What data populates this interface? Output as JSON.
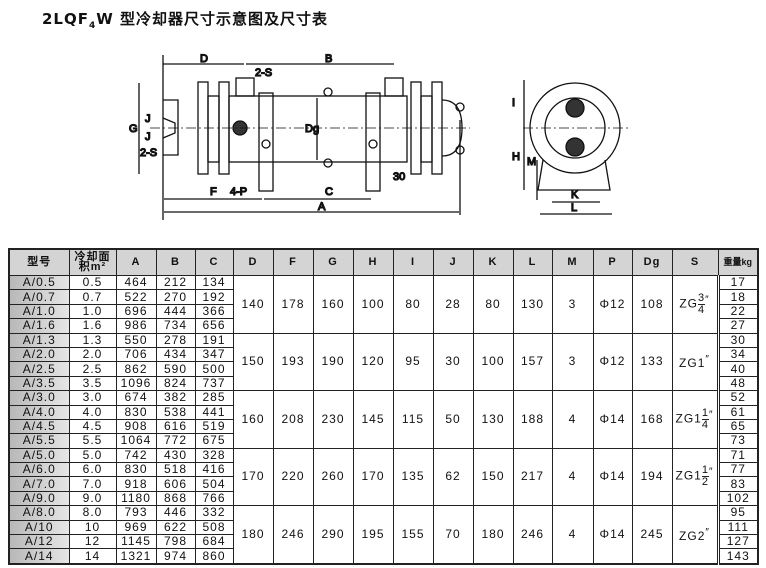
{
  "title": {
    "prefix": "2LQF",
    "sub": "4",
    "suffix": "W 型冷却器尺寸示意图及尺寸表"
  },
  "drawing": {
    "side_labels": {
      "D": "D",
      "B": "B",
      "S2_top": "2-S",
      "S2_left": "2-S",
      "G": "G",
      "J1": "J",
      "J2": "J",
      "Dg": "Dg",
      "F": "F",
      "P4": "4-P",
      "C": "C",
      "d30": "30",
      "A": "A"
    },
    "end_labels": {
      "I": "I",
      "H": "H",
      "M": "M",
      "K": "K",
      "L": "L"
    }
  },
  "table": {
    "headers": [
      "型号",
      "冷却面积m²",
      "A",
      "B",
      "C",
      "D",
      "F",
      "G",
      "H",
      "I",
      "J",
      "K",
      "L",
      "M",
      "P",
      "Dg",
      "S",
      "重量kg"
    ],
    "header_area": {
      "line1": "冷却面",
      "line2": "积m²"
    },
    "rows": [
      {
        "model": "A/0.5",
        "area": "0.5",
        "A": "464",
        "B": "212",
        "C": "134",
        "kg": "17"
      },
      {
        "model": "A/0.7",
        "area": "0.7",
        "A": "522",
        "B": "270",
        "C": "192",
        "kg": "18"
      },
      {
        "model": "A/1.0",
        "area": "1.0",
        "A": "696",
        "B": "444",
        "C": "366",
        "kg": "22"
      },
      {
        "model": "A/1.6",
        "area": "1.6",
        "A": "986",
        "B": "734",
        "C": "656",
        "kg": "27"
      },
      {
        "model": "A/1.3",
        "area": "1.3",
        "A": "550",
        "B": "278",
        "C": "191",
        "kg": "30"
      },
      {
        "model": "A/2.0",
        "area": "2.0",
        "A": "706",
        "B": "434",
        "C": "347",
        "kg": "34"
      },
      {
        "model": "A/2.5",
        "area": "2.5",
        "A": "862",
        "B": "590",
        "C": "500",
        "kg": "40"
      },
      {
        "model": "A/3.5",
        "area": "3.5",
        "A": "1096",
        "B": "824",
        "C": "737",
        "kg": "48"
      },
      {
        "model": "A/3.0",
        "area": "3.0",
        "A": "674",
        "B": "382",
        "C": "285",
        "kg": "52"
      },
      {
        "model": "A/4.0",
        "area": "4.0",
        "A": "830",
        "B": "538",
        "C": "441",
        "kg": "61"
      },
      {
        "model": "A/4.5",
        "area": "4.5",
        "A": "908",
        "B": "616",
        "C": "519",
        "kg": "65"
      },
      {
        "model": "A/5.5",
        "area": "5.5",
        "A": "1064",
        "B": "772",
        "C": "675",
        "kg": "73"
      },
      {
        "model": "A/5.0",
        "area": "5.0",
        "A": "742",
        "B": "430",
        "C": "328",
        "kg": "71"
      },
      {
        "model": "A/6.0",
        "area": "6.0",
        "A": "830",
        "B": "518",
        "C": "416",
        "kg": "77"
      },
      {
        "model": "A/7.0",
        "area": "7.0",
        "A": "918",
        "B": "606",
        "C": "504",
        "kg": "83"
      },
      {
        "model": "A/9.0",
        "area": "9.0",
        "A": "1180",
        "B": "868",
        "C": "766",
        "kg": "102"
      },
      {
        "model": "A/8.0",
        "area": "8.0",
        "A": "793",
        "B": "446",
        "C": "332",
        "kg": "95"
      },
      {
        "model": "A/10",
        "area": "10",
        "A": "969",
        "B": "622",
        "C": "508",
        "kg": "111"
      },
      {
        "model": "A/12",
        "area": "12",
        "A": "1145",
        "B": "798",
        "C": "684",
        "kg": "127"
      },
      {
        "model": "A/14",
        "area": "14",
        "A": "1321",
        "B": "974",
        "C": "860",
        "kg": "143"
      }
    ],
    "groups": [
      {
        "D": "140",
        "F": "178",
        "G": "160",
        "H": "100",
        "I": "80",
        "J": "28",
        "K": "80",
        "L": "130",
        "M": "3",
        "P": "Φ12",
        "Dg": "108",
        "S": {
          "base": "ZG",
          "num": "3",
          "den": "4",
          "mark": "″"
        }
      },
      {
        "D": "150",
        "F": "193",
        "G": "190",
        "H": "120",
        "I": "95",
        "J": "30",
        "K": "100",
        "L": "157",
        "M": "3",
        "P": "Φ12",
        "Dg": "133",
        "S": {
          "base": "ZG1",
          "num": "",
          "den": "",
          "mark": "″"
        }
      },
      {
        "D": "160",
        "F": "208",
        "G": "230",
        "H": "145",
        "I": "115",
        "J": "50",
        "K": "130",
        "L": "188",
        "M": "4",
        "P": "Φ14",
        "Dg": "168",
        "S": {
          "base": "ZG1",
          "num": "1",
          "den": "4",
          "mark": "″"
        }
      },
      {
        "D": "170",
        "F": "220",
        "G": "260",
        "H": "170",
        "I": "135",
        "J": "62",
        "K": "150",
        "L": "217",
        "M": "4",
        "P": "Φ14",
        "Dg": "194",
        "S": {
          "base": "ZG1",
          "num": "1",
          "den": "2",
          "mark": "″"
        }
      },
      {
        "D": "180",
        "F": "246",
        "G": "290",
        "H": "195",
        "I": "155",
        "J": "70",
        "K": "180",
        "L": "246",
        "M": "4",
        "P": "Φ14",
        "Dg": "245",
        "S": {
          "base": "ZG2",
          "num": "",
          "den": "",
          "mark": "″"
        }
      }
    ]
  }
}
